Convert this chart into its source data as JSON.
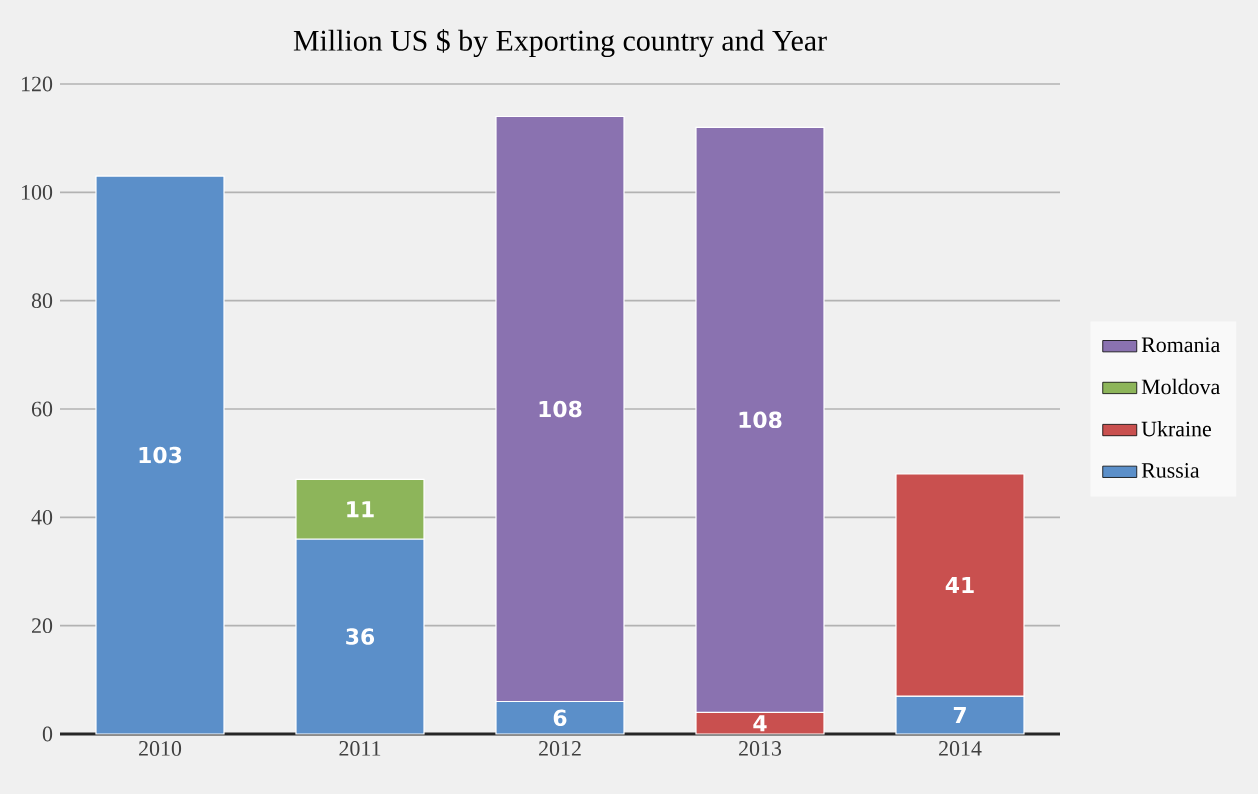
{
  "chart_data": {
    "type": "bar",
    "title": "Million US $ by Exporting country and Year",
    "categories": [
      "2010",
      "2011",
      "2012",
      "2013",
      "2014"
    ],
    "series": [
      {
        "name": "Russia",
        "color": "#5b8fc9",
        "values": [
          103,
          36,
          6,
          null,
          7
        ]
      },
      {
        "name": "Ukraine",
        "color": "#c9504f",
        "values": [
          null,
          null,
          null,
          4,
          41
        ]
      },
      {
        "name": "Moldova",
        "color": "#8db55a",
        "values": [
          null,
          11,
          null,
          null,
          null
        ]
      },
      {
        "name": "Romania",
        "color": "#8a72b0",
        "values": [
          null,
          null,
          108,
          108,
          null
        ]
      }
    ],
    "stacked": true,
    "ylim": [
      0,
      120
    ],
    "yticks": [
      0,
      20,
      40,
      60,
      80,
      100,
      120
    ],
    "grid": "y",
    "legend": "right",
    "data_labels": true
  }
}
